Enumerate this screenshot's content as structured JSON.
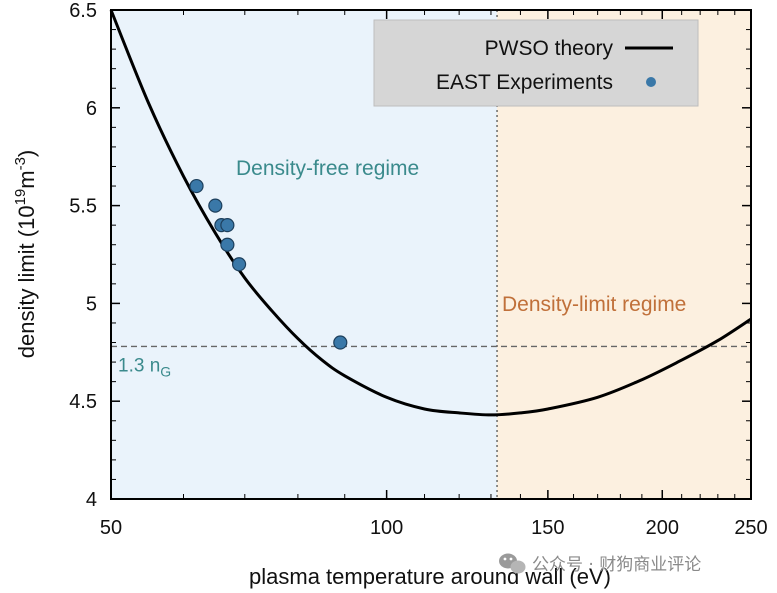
{
  "chart_data": {
    "type": "line",
    "xlabel": "plasma temperature around wall (eV)",
    "ylabel": "density limit (10¹⁹m⁻³)",
    "ylabel_parts": {
      "main": "density limit (10",
      "exp1": "19",
      "mid": "m",
      "exp2": "-3",
      "close": ")"
    },
    "x_scale": "log",
    "xlim": [
      50,
      250
    ],
    "ylim": [
      4,
      6.5
    ],
    "x_ticks": [
      50,
      100,
      150,
      200,
      250
    ],
    "x_tick_labels": [
      "50",
      "100",
      "150",
      "200",
      "250"
    ],
    "y_ticks": [
      4,
      4.5,
      5,
      5.5,
      6,
      6.5
    ],
    "y_tick_labels": [
      "4",
      "4.5",
      "5",
      "5.5",
      "6",
      "6.5"
    ],
    "grid": false,
    "legend_position": "top-right",
    "series": [
      {
        "name": "PWSO theory",
        "kind": "line",
        "color": "#000000",
        "x": [
          50,
          55,
          60,
          65,
          70,
          75,
          80,
          85,
          90,
          100,
          110,
          120,
          130,
          140,
          150,
          170,
          190,
          210,
          230,
          250
        ],
        "y": [
          6.5,
          6.02,
          5.65,
          5.36,
          5.13,
          4.96,
          4.82,
          4.71,
          4.63,
          4.52,
          4.46,
          4.44,
          4.43,
          4.44,
          4.46,
          4.52,
          4.61,
          4.71,
          4.81,
          4.92
        ]
      },
      {
        "name": "EAST Experiments",
        "kind": "scatter",
        "color": "#3a78a8",
        "x": [
          62,
          65,
          66,
          67,
          67,
          69,
          89
        ],
        "y": [
          5.6,
          5.5,
          5.4,
          5.4,
          5.3,
          5.2,
          4.8
        ]
      }
    ],
    "regions": [
      {
        "label": "Density-free regime",
        "x_range": [
          50,
          132
        ],
        "fill": "#eaf3fb",
        "text_color": "#3a8a8c"
      },
      {
        "label": "Density-limit regime",
        "x_range": [
          132,
          250
        ],
        "fill": "#fcf0e0",
        "text_color": "#c0703a"
      }
    ],
    "reference_lines": [
      {
        "axis": "x",
        "value": 132,
        "style": "dotted"
      },
      {
        "axis": "y",
        "value": 4.78,
        "style": "dashed",
        "label_main": "1.3 n",
        "label_sub": "G"
      }
    ]
  },
  "watermark": {
    "text": "公众号 · 财狗商业评论",
    "icon": "wechat-icon"
  }
}
